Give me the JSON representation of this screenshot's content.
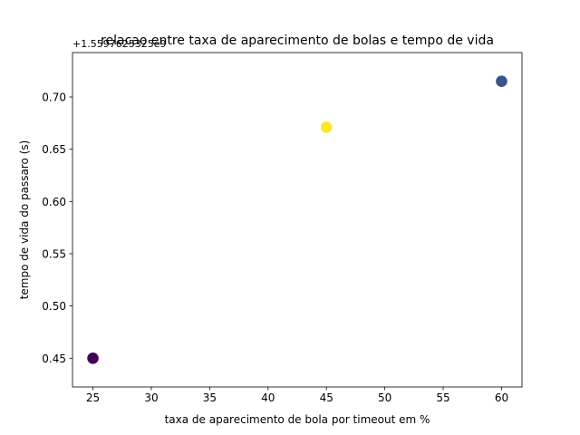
{
  "chart_data": {
    "type": "scatter",
    "title": "relacao entre taxa de aparecimento de bolas e tempo de vida",
    "xlabel": "taxa de aparecimento de bola por timeout em %",
    "ylabel": "tempo de vida do passaro (s)",
    "offset_text": "+1.5597625325e9",
    "xlim": [
      23.25,
      61.75
    ],
    "ylim": [
      0.4225,
      0.7425
    ],
    "xticks": [
      25,
      30,
      35,
      40,
      45,
      50,
      55,
      60
    ],
    "xtick_labels": [
      "25",
      "30",
      "35",
      "40",
      "45",
      "50",
      "55",
      "60"
    ],
    "yticks": [
      0.45,
      0.5,
      0.55,
      0.6,
      0.65,
      0.7
    ],
    "ytick_labels": [
      "0.45",
      "0.50",
      "0.55",
      "0.60",
      "0.65",
      "0.70"
    ],
    "grid": false,
    "points": [
      {
        "x": 25,
        "y": 0.45,
        "color": "#440154"
      },
      {
        "x": 45,
        "y": 0.671,
        "color": "#fde725"
      },
      {
        "x": 60,
        "y": 0.715,
        "color": "#3b528b"
      }
    ]
  }
}
